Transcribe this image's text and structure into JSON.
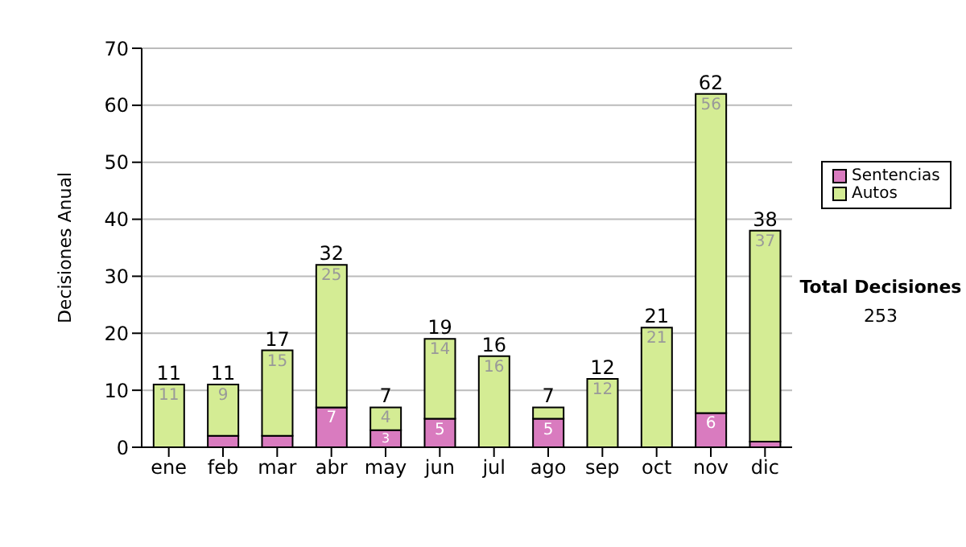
{
  "chart_data": {
    "type": "bar",
    "ylabel": "Decisiones Anual",
    "categories": [
      "ene",
      "feb",
      "mar",
      "abr",
      "may",
      "jun",
      "jul",
      "ago",
      "sep",
      "oct",
      "nov",
      "dic"
    ],
    "stacked": true,
    "series": [
      {
        "name": "Sentencias",
        "color": "#d97bbf",
        "values": [
          0,
          2,
          2,
          7,
          3,
          5,
          0,
          5,
          0,
          0,
          6,
          1
        ],
        "value_labels": [
          null,
          null,
          null,
          "7",
          "3",
          "5",
          null,
          "5",
          null,
          null,
          "6",
          null
        ]
      },
      {
        "name": "Autos",
        "color": "#d4ec94",
        "values": [
          11,
          9,
          15,
          25,
          4,
          14,
          16,
          2,
          12,
          21,
          56,
          37
        ],
        "value_labels": [
          "11",
          "9",
          "15",
          "25",
          "4",
          "14",
          "16",
          null,
          "12",
          "21",
          "56",
          "37"
        ]
      }
    ],
    "totals": [
      "11",
      "11",
      "17",
      "32",
      "7",
      "19",
      "16",
      "7",
      "12",
      "21",
      "62",
      "38"
    ],
    "ylim": [
      0,
      70
    ],
    "yticks": [
      0,
      10,
      20,
      30,
      40,
      50,
      60,
      70
    ],
    "grid": "y",
    "legend": "right",
    "annotations": [
      "Total Decisiones",
      "253"
    ]
  }
}
